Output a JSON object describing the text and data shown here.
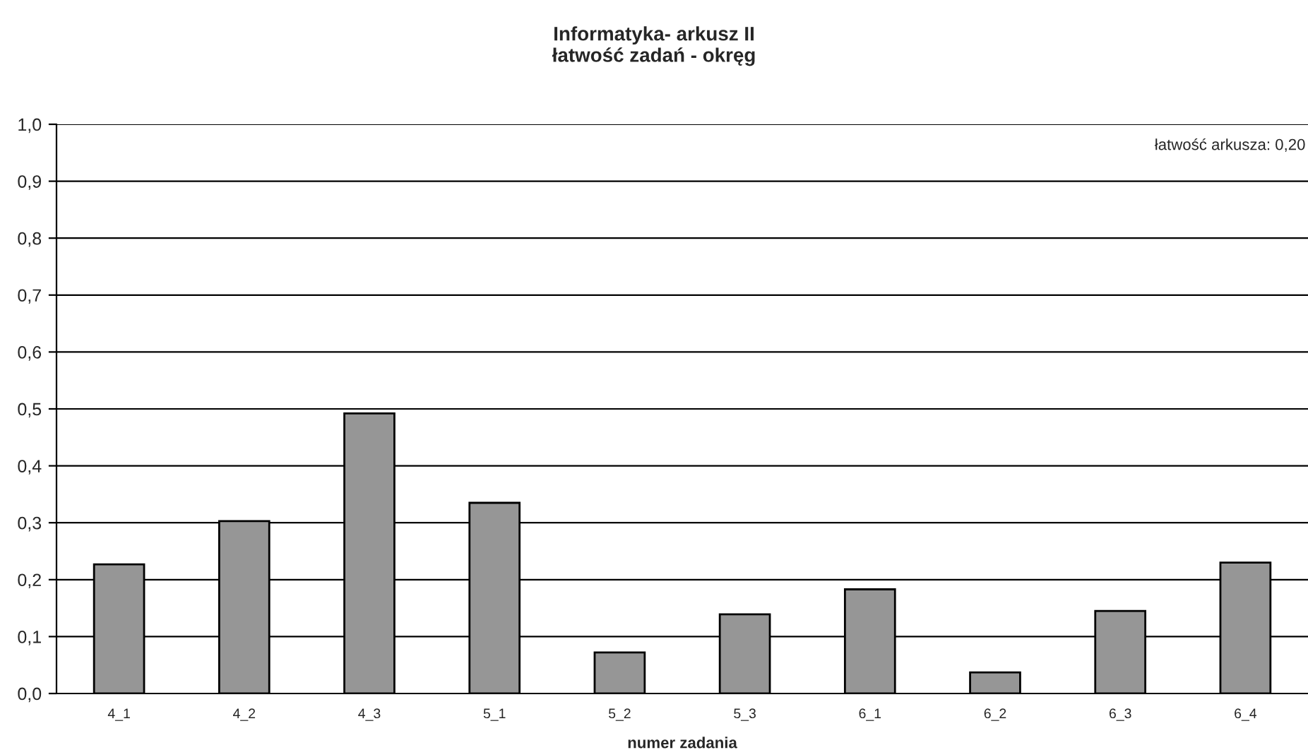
{
  "chart_data": {
    "type": "bar",
    "title": "Informatyka- arkusz II\nłatwość zadań - okręg",
    "xlabel": "numer zadania",
    "categories": [
      "4_1",
      "4_2",
      "4_3",
      "5_1",
      "5_2",
      "5_3",
      "6_1",
      "6_2",
      "6_3",
      "6_4"
    ],
    "values": [
      0.227,
      0.303,
      0.492,
      0.335,
      0.072,
      0.139,
      0.183,
      0.037,
      0.145,
      0.23
    ],
    "color": "#969696",
    "ylim": [
      0,
      1
    ],
    "yticks": [
      {
        "value": 0,
        "label": "0,0"
      },
      {
        "value": 0.1,
        "label": "0,1"
      },
      {
        "value": 0.2,
        "label": "0,2"
      },
      {
        "value": 0.3,
        "label": "0,3"
      },
      {
        "value": 0.4,
        "label": "0,4"
      },
      {
        "value": 0.5,
        "label": "0,5"
      },
      {
        "value": 0.6,
        "label": "0,6"
      },
      {
        "value": 0.7,
        "label": "0,7"
      },
      {
        "value": 0.8,
        "label": "0,8"
      },
      {
        "value": 0.9,
        "label": "0,9"
      },
      {
        "value": 1,
        "label": "1,0"
      }
    ],
    "grid": "y",
    "annotations": [
      "łatwość arkusza: 0,20"
    ]
  }
}
